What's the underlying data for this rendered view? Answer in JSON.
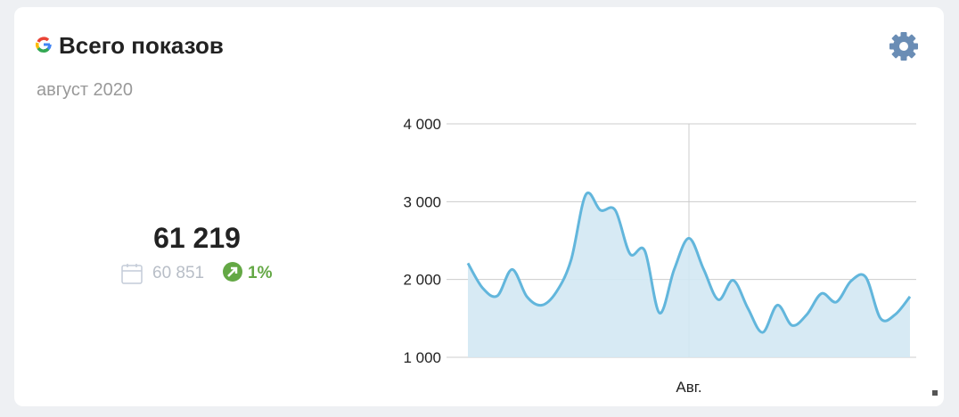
{
  "header": {
    "title": "Всего показов",
    "subtitle": "август 2020"
  },
  "summary": {
    "total": "61 219",
    "previous": "60 851",
    "change": "1%"
  },
  "chart_data": {
    "type": "area",
    "color": "#62b6dc",
    "fill": "#d3e8f3",
    "categories": [
      null,
      null,
      null,
      null,
      null,
      null,
      null,
      null,
      null,
      null,
      null,
      null,
      null,
      null,
      null,
      "Авг.",
      null,
      null,
      null,
      null,
      null,
      null,
      null,
      null,
      null,
      null,
      null,
      null,
      null,
      null,
      null
    ],
    "values": [
      2210,
      1890,
      1790,
      2130,
      1780,
      1670,
      1840,
      2250,
      3090,
      2890,
      2890,
      2330,
      2370,
      1570,
      2130,
      2530,
      2130,
      1740,
      1990,
      1630,
      1320,
      1670,
      1410,
      1550,
      1820,
      1710,
      1980,
      2030,
      1500,
      1550,
      1780
    ],
    "ylim": [
      1000,
      4000
    ],
    "yticks": [
      {
        "value": 1000,
        "label": "1 000"
      },
      {
        "value": 2000,
        "label": "2 000"
      },
      {
        "value": 3000,
        "label": "3 000"
      },
      {
        "value": 4000,
        "label": "4 000"
      }
    ],
    "grid": true
  }
}
